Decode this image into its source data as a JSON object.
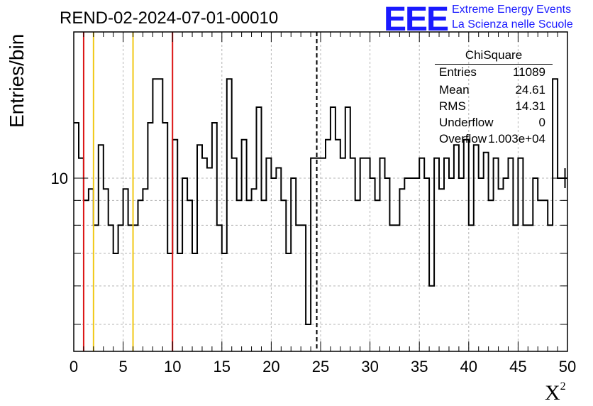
{
  "title": "REND-02-2024-07-01-00010",
  "logo": {
    "mark": "EEE",
    "line1": "Extreme Energy Events",
    "line2": "La Scienza nelle Scuole",
    "color": "#1a1aff"
  },
  "stats": {
    "title": "ChiSquare",
    "rows": [
      {
        "label": "Entries",
        "value": "11089"
      },
      {
        "label": "Mean",
        "value": "24.61"
      },
      {
        "label": "RMS",
        "value": "14.31"
      },
      {
        "label": "Underflow",
        "value": "0"
      },
      {
        "label": "Overflow",
        "value": "1.003e+04"
      }
    ]
  },
  "chart_data": {
    "type": "histogram",
    "xlabel": "X",
    "xlabel_superscript": "2",
    "ylabel": "Entries/bin",
    "xlim": [
      0,
      50
    ],
    "ylim": [
      4.4,
      20
    ],
    "log_y": true,
    "grid": true,
    "x_ticks": [
      "0",
      "5",
      "10",
      "15",
      "20",
      "25",
      "30",
      "35",
      "40",
      "45",
      "50"
    ],
    "y_ticks": [
      "10"
    ],
    "bin_width": 0.5,
    "bin_values": [
      13,
      11,
      9,
      9.5,
      8,
      11.7,
      9.5,
      8,
      7,
      8,
      9.5,
      8,
      8,
      9,
      9.5,
      13,
      16,
      16,
      13,
      7,
      12,
      7,
      10,
      9,
      7,
      11.7,
      11,
      10.5,
      13,
      8,
      7,
      16,
      11,
      9,
      12,
      9,
      9.5,
      14,
      9,
      11,
      10,
      10.5,
      9,
      7,
      10,
      8,
      8,
      5,
      11,
      11,
      11,
      12,
      14,
      12,
      11,
      14,
      11,
      9,
      11,
      11,
      10,
      9,
      11,
      10,
      8,
      8,
      9.5,
      10,
      10,
      10,
      11,
      10,
      6,
      11,
      9.5,
      11,
      10,
      11.7,
      10,
      12,
      8,
      11.7,
      10,
      11.3,
      9,
      11,
      9.5,
      10,
      11,
      8,
      11,
      8,
      8,
      10,
      9,
      9,
      8,
      16,
      10,
      10
    ],
    "threshold_lines": [
      {
        "x": 1,
        "color": "#dc1414"
      },
      {
        "x": 2,
        "color": "#f0c814"
      },
      {
        "x": 6,
        "color": "#f0c814"
      },
      {
        "x": 10,
        "color": "#dc1414"
      }
    ],
    "mean_line": {
      "x": 24.61,
      "style": "dashed",
      "color": "#000000"
    }
  }
}
